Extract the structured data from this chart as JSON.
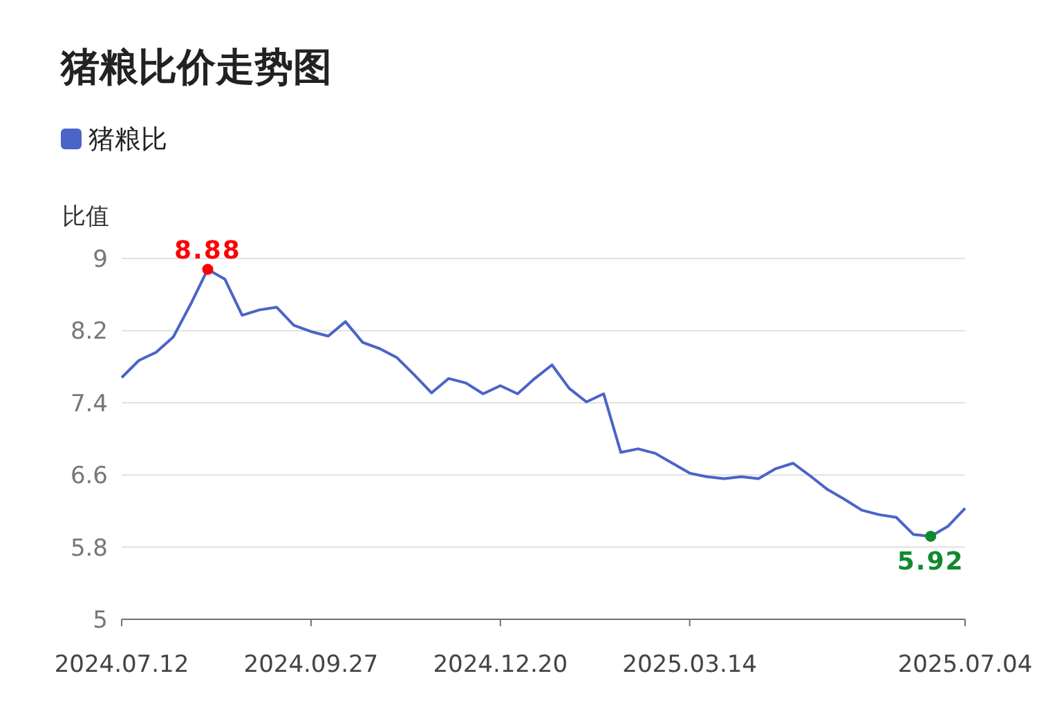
{
  "chart_data": {
    "type": "line",
    "title": "猪粮比价走势图",
    "ylabel": "比值",
    "legend": "top left",
    "grid": "y",
    "marker": "none",
    "categories": [
      "2024.07.12",
      null,
      null,
      null,
      null,
      null,
      null,
      null,
      null,
      null,
      null,
      "2024.09.27",
      null,
      null,
      null,
      null,
      null,
      null,
      null,
      null,
      null,
      null,
      "2024.12.20",
      null,
      null,
      null,
      null,
      null,
      null,
      null,
      null,
      null,
      null,
      "2025.03.14",
      null,
      null,
      null,
      null,
      null,
      null,
      null,
      null,
      null,
      null,
      null,
      null,
      null,
      null,
      null,
      "2025.07.04"
    ],
    "series": [
      {
        "name": "猪粮比",
        "color": "#4a64c8",
        "values": [
          7.68,
          7.87,
          7.96,
          8.13,
          8.49,
          8.88,
          8.77,
          8.37,
          8.43,
          8.46,
          8.26,
          8.19,
          8.14,
          8.3,
          8.07,
          8.0,
          7.9,
          7.71,
          7.51,
          7.67,
          7.62,
          7.5,
          7.59,
          7.5,
          7.67,
          7.82,
          7.56,
          7.41,
          7.5,
          6.85,
          6.89,
          6.84,
          6.73,
          6.62,
          6.58,
          6.56,
          6.58,
          6.56,
          6.67,
          6.73,
          6.59,
          6.44,
          6.33,
          6.21,
          6.16,
          6.13,
          5.94,
          5.92,
          6.03,
          6.23
        ]
      }
    ],
    "ylim": [
      5,
      9
    ],
    "yticks": [
      5,
      5.8,
      6.6,
      7.4,
      8.2,
      9
    ],
    "annotations": [
      {
        "text": "8.88",
        "y": 8.88
      },
      {
        "text": "5.92",
        "y": 5.92
      }
    ]
  }
}
